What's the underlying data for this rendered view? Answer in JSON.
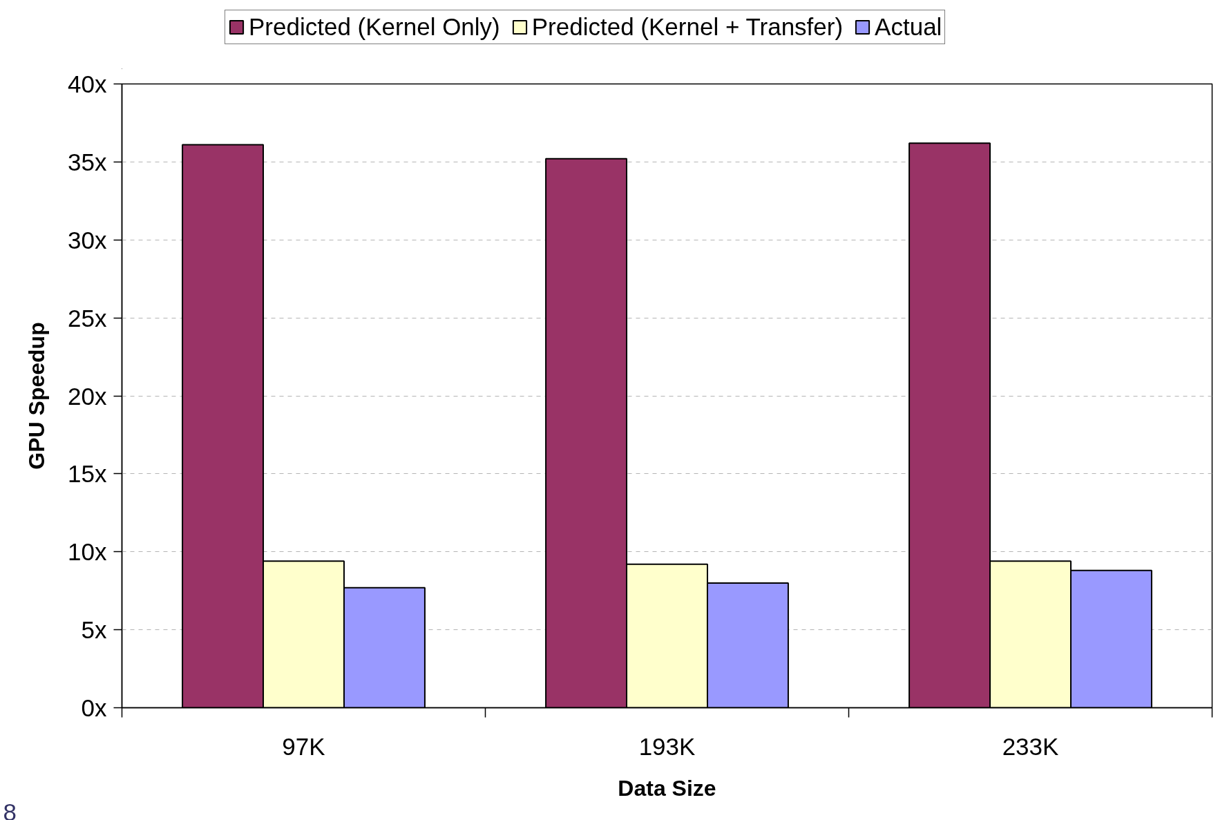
{
  "chart_data": {
    "type": "bar",
    "xlabel": "Data Size",
    "ylabel": "GPU Speedup",
    "categories": [
      "97K",
      "193K",
      "233K"
    ],
    "series": [
      {
        "name": "Predicted (Kernel Only)",
        "color": "#993366",
        "values": [
          36.1,
          35.2,
          36.2
        ]
      },
      {
        "name": "Predicted (Kernel + Transfer)",
        "color": "#ffffcc",
        "values": [
          9.4,
          9.2,
          9.4
        ]
      },
      {
        "name": "Actual",
        "color": "#9999ff",
        "values": [
          7.7,
          8.0,
          8.8
        ]
      }
    ],
    "ylim": [
      0,
      40
    ],
    "yticks": [
      {
        "value": 0,
        "label": "0x"
      },
      {
        "value": 5,
        "label": "5x"
      },
      {
        "value": 10,
        "label": "10x"
      },
      {
        "value": 15,
        "label": "15x"
      },
      {
        "value": 20,
        "label": "20x"
      },
      {
        "value": 25,
        "label": "25x"
      },
      {
        "value": 30,
        "label": "30x"
      },
      {
        "value": 35,
        "label": "35x"
      },
      {
        "value": 40,
        "label": "40x"
      }
    ],
    "grid": "y",
    "legend": "top",
    "annotations": [
      "8"
    ]
  }
}
